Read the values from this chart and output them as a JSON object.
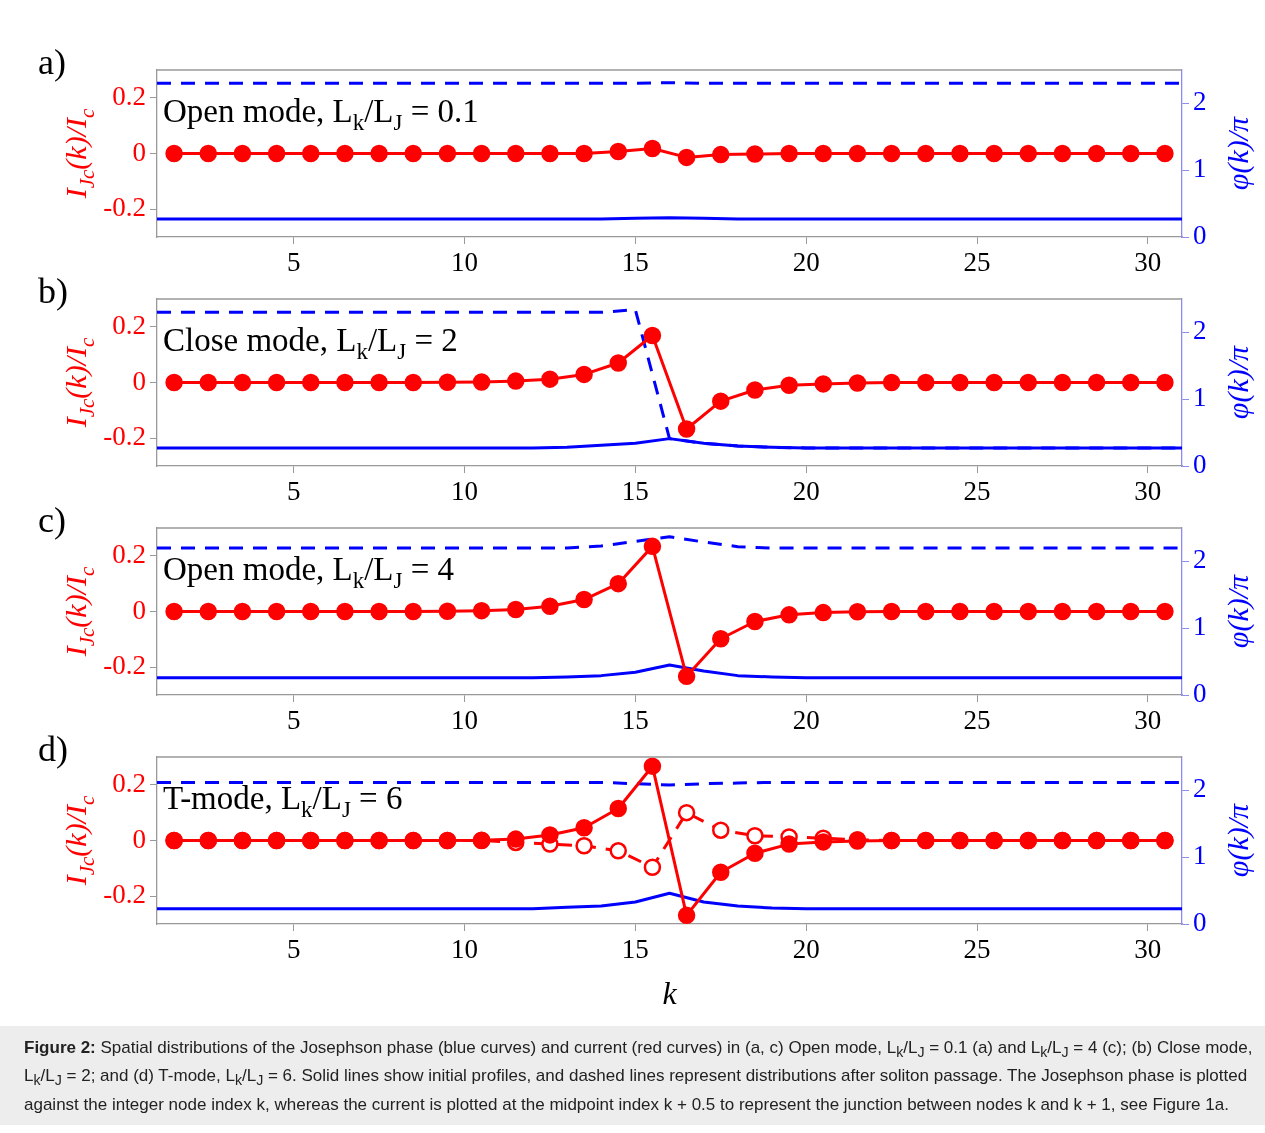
{
  "chart_data": [
    {
      "type": "line",
      "title": "a)",
      "ylabel": "I$_{Jc}$(k)/I$_{c}$",
      "y2label": "φ(k)/π",
      "xlim": [
        1,
        31
      ],
      "xticks": [
        5,
        10,
        15,
        20,
        25,
        30
      ],
      "ylim": [
        -0.3,
        0.3
      ],
      "yticks": [
        -0.2,
        0,
        0.2
      ],
      "y2lim": [
        0,
        2.5
      ],
      "y2ticks": [
        0,
        1,
        2
      ],
      "annotations": [
        "Open mode, L$_{k}$/L$_{J}$ = 0.1"
      ],
      "series": [
        {
          "color": "#0000ff",
          "axis": "y2",
          "line_style": "solid",
          "marker": "none",
          "x": [
            1,
            2,
            3,
            4,
            5,
            6,
            7,
            8,
            9,
            10,
            11,
            12,
            13,
            14,
            15,
            16,
            17,
            18,
            19,
            20,
            21,
            22,
            23,
            24,
            25,
            26,
            27,
            28,
            29,
            30,
            31
          ],
          "values": [
            0.27,
            0.27,
            0.27,
            0.27,
            0.27,
            0.27,
            0.27,
            0.27,
            0.27,
            0.27,
            0.27,
            0.27,
            0.27,
            0.27,
            0.28,
            0.29,
            0.28,
            0.27,
            0.27,
            0.27,
            0.27,
            0.27,
            0.27,
            0.27,
            0.27,
            0.27,
            0.27,
            0.27,
            0.27,
            0.27,
            0.27
          ]
        },
        {
          "color": "#0000ff",
          "axis": "y2",
          "line_style": "dashed",
          "marker": "none",
          "x": [
            1,
            2,
            3,
            4,
            5,
            6,
            7,
            8,
            9,
            10,
            11,
            12,
            13,
            14,
            15,
            16,
            17,
            18,
            19,
            20,
            21,
            22,
            23,
            24,
            25,
            26,
            27,
            28,
            29,
            30,
            31
          ],
          "values": [
            2.3,
            2.3,
            2.3,
            2.3,
            2.3,
            2.3,
            2.3,
            2.3,
            2.3,
            2.3,
            2.3,
            2.3,
            2.3,
            2.3,
            2.3,
            2.31,
            2.3,
            2.3,
            2.3,
            2.3,
            2.3,
            2.3,
            2.3,
            2.3,
            2.3,
            2.3,
            2.3,
            2.3,
            2.3,
            2.3,
            2.3
          ]
        },
        {
          "color": "#ff0000",
          "axis": "y",
          "line_style": "solid",
          "marker": "circle",
          "x": [
            1.5,
            2.5,
            3.5,
            4.5,
            5.5,
            6.5,
            7.5,
            8.5,
            9.5,
            10.5,
            11.5,
            12.5,
            13.5,
            14.5,
            15.5,
            16.5,
            17.5,
            18.5,
            19.5,
            20.5,
            21.5,
            22.5,
            23.5,
            24.5,
            25.5,
            26.5,
            27.5,
            28.5,
            29.5,
            30.5
          ],
          "values": [
            0,
            0,
            0,
            0,
            0,
            0,
            0,
            0,
            0,
            0,
            0,
            0,
            0,
            0.007,
            0.018,
            -0.014,
            -0.004,
            -0.002,
            0,
            0,
            0,
            0,
            0,
            0,
            0,
            0,
            0,
            0,
            0,
            0
          ]
        }
      ]
    },
    {
      "type": "line",
      "title": "b)",
      "ylabel": "I$_{Jc}$(k)/I$_{c}$",
      "y2label": "φ(k)/π",
      "xlim": [
        1,
        31
      ],
      "xticks": [
        5,
        10,
        15,
        20,
        25,
        30
      ],
      "ylim": [
        -0.3,
        0.3
      ],
      "yticks": [
        -0.2,
        0,
        0.2
      ],
      "y2lim": [
        0,
        2.5
      ],
      "y2ticks": [
        0,
        1,
        2
      ],
      "annotations": [
        "Close mode, L$_{k}$/L$_{J}$ = 2"
      ],
      "series": [
        {
          "color": "#0000ff",
          "axis": "y2",
          "line_style": "solid",
          "marker": "none",
          "x": [
            1,
            2,
            3,
            4,
            5,
            6,
            7,
            8,
            9,
            10,
            11,
            12,
            13,
            14,
            15,
            16,
            17,
            18,
            19,
            20,
            21,
            22,
            23,
            24,
            25,
            26,
            27,
            28,
            29,
            30,
            31
          ],
          "values": [
            0.27,
            0.27,
            0.27,
            0.27,
            0.27,
            0.27,
            0.27,
            0.27,
            0.27,
            0.27,
            0.27,
            0.27,
            0.28,
            0.31,
            0.34,
            0.41,
            0.34,
            0.3,
            0.28,
            0.27,
            0.27,
            0.27,
            0.27,
            0.27,
            0.27,
            0.27,
            0.27,
            0.27,
            0.27,
            0.27,
            0.27
          ]
        },
        {
          "color": "#0000ff",
          "axis": "y2",
          "line_style": "dashed",
          "marker": "none",
          "x": [
            1,
            2,
            3,
            4,
            5,
            6,
            7,
            8,
            9,
            10,
            11,
            12,
            13,
            14,
            15,
            16,
            17,
            18,
            19,
            20,
            21,
            22,
            23,
            24,
            25,
            26,
            27,
            28,
            29,
            30,
            31
          ],
          "values": [
            2.3,
            2.3,
            2.3,
            2.3,
            2.3,
            2.3,
            2.3,
            2.3,
            2.3,
            2.3,
            2.3,
            2.3,
            2.3,
            2.3,
            2.34,
            0.41,
            0.34,
            0.3,
            0.28,
            0.27,
            0.27,
            0.27,
            0.27,
            0.27,
            0.27,
            0.27,
            0.27,
            0.27,
            0.27,
            0.27,
            0.27
          ]
        },
        {
          "color": "#ff0000",
          "axis": "y",
          "line_style": "solid",
          "marker": "circle",
          "x": [
            1.5,
            2.5,
            3.5,
            4.5,
            5.5,
            6.5,
            7.5,
            8.5,
            9.5,
            10.5,
            11.5,
            12.5,
            13.5,
            14.5,
            15.5,
            16.5,
            17.5,
            18.5,
            19.5,
            20.5,
            21.5,
            22.5,
            23.5,
            24.5,
            25.5,
            26.5,
            27.5,
            28.5,
            29.5,
            30.5
          ],
          "values": [
            0,
            0,
            0,
            0,
            0,
            0,
            0,
            0,
            0.001,
            0.002,
            0.005,
            0.012,
            0.029,
            0.07,
            0.169,
            -0.167,
            -0.067,
            -0.027,
            -0.01,
            -0.005,
            -0.002,
            0,
            0,
            0,
            0,
            0,
            0,
            0,
            0,
            0
          ]
        }
      ]
    },
    {
      "type": "line",
      "title": "c)",
      "ylabel": "I$_{Jc}$(k)/I$_{c}$",
      "y2label": "φ(k)/π",
      "xlim": [
        1,
        31
      ],
      "xticks": [
        5,
        10,
        15,
        20,
        25,
        30
      ],
      "ylim": [
        -0.3,
        0.3
      ],
      "yticks": [
        -0.2,
        0,
        0.2
      ],
      "y2lim": [
        0,
        2.5
      ],
      "y2ticks": [
        0,
        1,
        2
      ],
      "annotations": [
        "Open mode, L$_{k}$/L$_{J}$ = 4"
      ],
      "series": [
        {
          "color": "#0000ff",
          "axis": "y2",
          "line_style": "solid",
          "marker": "none",
          "x": [
            1,
            2,
            3,
            4,
            5,
            6,
            7,
            8,
            9,
            10,
            11,
            12,
            13,
            14,
            15,
            16,
            17,
            18,
            19,
            20,
            21,
            22,
            23,
            24,
            25,
            26,
            27,
            28,
            29,
            30,
            31
          ],
          "values": [
            0.26,
            0.26,
            0.26,
            0.26,
            0.26,
            0.26,
            0.26,
            0.26,
            0.26,
            0.26,
            0.26,
            0.26,
            0.27,
            0.29,
            0.34,
            0.45,
            0.36,
            0.29,
            0.27,
            0.26,
            0.26,
            0.26,
            0.26,
            0.26,
            0.26,
            0.26,
            0.26,
            0.26,
            0.26,
            0.26,
            0.26
          ]
        },
        {
          "color": "#0000ff",
          "axis": "y2",
          "line_style": "dashed",
          "marker": "none",
          "x": [
            1,
            2,
            3,
            4,
            5,
            6,
            7,
            8,
            9,
            10,
            11,
            12,
            13,
            14,
            15,
            16,
            17,
            18,
            19,
            20,
            21,
            22,
            23,
            24,
            25,
            26,
            27,
            28,
            29,
            30,
            31
          ],
          "values": [
            2.2,
            2.2,
            2.2,
            2.2,
            2.2,
            2.2,
            2.2,
            2.2,
            2.2,
            2.2,
            2.2,
            2.2,
            2.2,
            2.23,
            2.3,
            2.37,
            2.29,
            2.22,
            2.2,
            2.2,
            2.2,
            2.2,
            2.2,
            2.2,
            2.2,
            2.2,
            2.2,
            2.2,
            2.2,
            2.2,
            2.2
          ]
        },
        {
          "color": "#ff0000",
          "axis": "y",
          "line_style": "solid",
          "marker": "circle",
          "x": [
            1.5,
            2.5,
            3.5,
            4.5,
            5.5,
            6.5,
            7.5,
            8.5,
            9.5,
            10.5,
            11.5,
            12.5,
            13.5,
            14.5,
            15.5,
            16.5,
            17.5,
            18.5,
            19.5,
            20.5,
            21.5,
            22.5,
            23.5,
            24.5,
            25.5,
            26.5,
            27.5,
            28.5,
            29.5,
            30.5
          ],
          "values": [
            0,
            0,
            0,
            0,
            0,
            0,
            0,
            0,
            0.001,
            0.003,
            0.007,
            0.019,
            0.043,
            0.1,
            0.234,
            -0.233,
            -0.098,
            -0.036,
            -0.012,
            -0.004,
            -0.001,
            0,
            0,
            0,
            0,
            0,
            0,
            0,
            0,
            0
          ]
        }
      ]
    },
    {
      "type": "line",
      "title": "d)",
      "xlabel": "k",
      "ylabel": "I$_{Jc}$(k)/I$_{c}$",
      "y2label": "φ(k)/π",
      "xlim": [
        1,
        31
      ],
      "xticks": [
        5,
        10,
        15,
        20,
        25,
        30
      ],
      "ylim": [
        -0.3,
        0.3
      ],
      "yticks": [
        -0.2,
        0,
        0.2
      ],
      "y2lim": [
        0,
        2.5
      ],
      "y2ticks": [
        0,
        1,
        2
      ],
      "annotations": [
        "T-mode, L$_{k}$/L$_{J}$ = 6",
        "Figure 2: Spatial distributions of the Josephson phase (blue curves) and current (red curves) in (a, c) Open mode, L$_{k}$/L$_{J}$ = 0.1 (a) and L$_{k}$/L$_{J}$ = 4 (c); (b) Close mode, L$_{k}$/L$_{J}$ = 2; and (d) T-mode, L$_{k}$/L$_{J}$ = 6. Solid lines show initial profiles, and dashed lines represent distributions after soliton passage. The Josephson phase is plotted against the integer node index k, whereas the current is plotted at the midpoint index k + 0.5 to represent the junction between nodes k and k + 1, see Figure 1a."
      ],
      "series": [
        {
          "color": "#0000ff",
          "axis": "y2",
          "line_style": "solid",
          "marker": "none",
          "x": [
            1,
            2,
            3,
            4,
            5,
            6,
            7,
            8,
            9,
            10,
            11,
            12,
            13,
            14,
            15,
            16,
            17,
            18,
            19,
            20,
            21,
            22,
            23,
            24,
            25,
            26,
            27,
            28,
            29,
            30,
            31
          ],
          "values": [
            0.23,
            0.23,
            0.23,
            0.23,
            0.23,
            0.23,
            0.23,
            0.23,
            0.23,
            0.23,
            0.23,
            0.23,
            0.25,
            0.27,
            0.33,
            0.46,
            0.33,
            0.27,
            0.24,
            0.23,
            0.23,
            0.23,
            0.23,
            0.23,
            0.23,
            0.23,
            0.23,
            0.23,
            0.23,
            0.23,
            0.23
          ]
        },
        {
          "color": "#0000ff",
          "axis": "y2",
          "line_style": "dashed",
          "marker": "none",
          "x": [
            1,
            2,
            3,
            4,
            5,
            6,
            7,
            8,
            9,
            10,
            11,
            12,
            13,
            14,
            15,
            16,
            17,
            18,
            19,
            20,
            21,
            22,
            23,
            24,
            25,
            26,
            27,
            28,
            29,
            30,
            31
          ],
          "values": [
            2.12,
            2.12,
            2.12,
            2.12,
            2.12,
            2.12,
            2.12,
            2.12,
            2.12,
            2.12,
            2.12,
            2.12,
            2.12,
            2.12,
            2.1,
            2.08,
            2.1,
            2.11,
            2.12,
            2.12,
            2.12,
            2.12,
            2.12,
            2.12,
            2.12,
            2.12,
            2.12,
            2.12,
            2.12,
            2.12,
            2.12
          ]
        },
        {
          "color": "#ff0000",
          "axis": "y",
          "line_style": "dashed",
          "marker": "circle",
          "x": [
            1.5,
            2.5,
            3.5,
            4.5,
            5.5,
            6.5,
            7.5,
            8.5,
            9.5,
            10.5,
            11.5,
            12.5,
            13.5,
            14.5,
            15.5,
            16.5,
            17.5,
            18.5,
            19.5,
            20.5,
            21.5,
            22.5,
            23.5,
            24.5,
            25.5,
            26.5,
            27.5,
            28.5,
            29.5,
            30.5
          ],
          "values": [
            0,
            0,
            0,
            0,
            0,
            0,
            0,
            0,
            0,
            0,
            -0.007,
            -0.013,
            -0.019,
            -0.037,
            -0.096,
            0.1,
            0.037,
            0.017,
            0.013,
            0.008,
            0.003,
            0,
            0,
            0,
            0,
            0,
            0,
            0,
            0,
            0
          ]
        },
        {
          "color": "#ff0000",
          "axis": "y",
          "line_style": "solid",
          "marker": "circle",
          "x": [
            1.5,
            2.5,
            3.5,
            4.5,
            5.5,
            6.5,
            7.5,
            8.5,
            9.5,
            10.5,
            11.5,
            12.5,
            13.5,
            14.5,
            15.5,
            16.5,
            17.5,
            18.5,
            19.5,
            20.5,
            21.5,
            22.5,
            23.5,
            24.5,
            25.5,
            26.5,
            27.5,
            28.5,
            29.5,
            30.5
          ],
          "values": [
            0,
            0,
            0,
            0,
            0,
            0,
            0,
            0,
            0,
            0.001,
            0.005,
            0.02,
            0.046,
            0.115,
            0.267,
            -0.269,
            -0.114,
            -0.046,
            -0.013,
            -0.005,
            -0.002,
            0,
            0,
            0,
            0,
            0,
            0,
            0,
            0,
            0
          ]
        }
      ]
    }
  ]
}
